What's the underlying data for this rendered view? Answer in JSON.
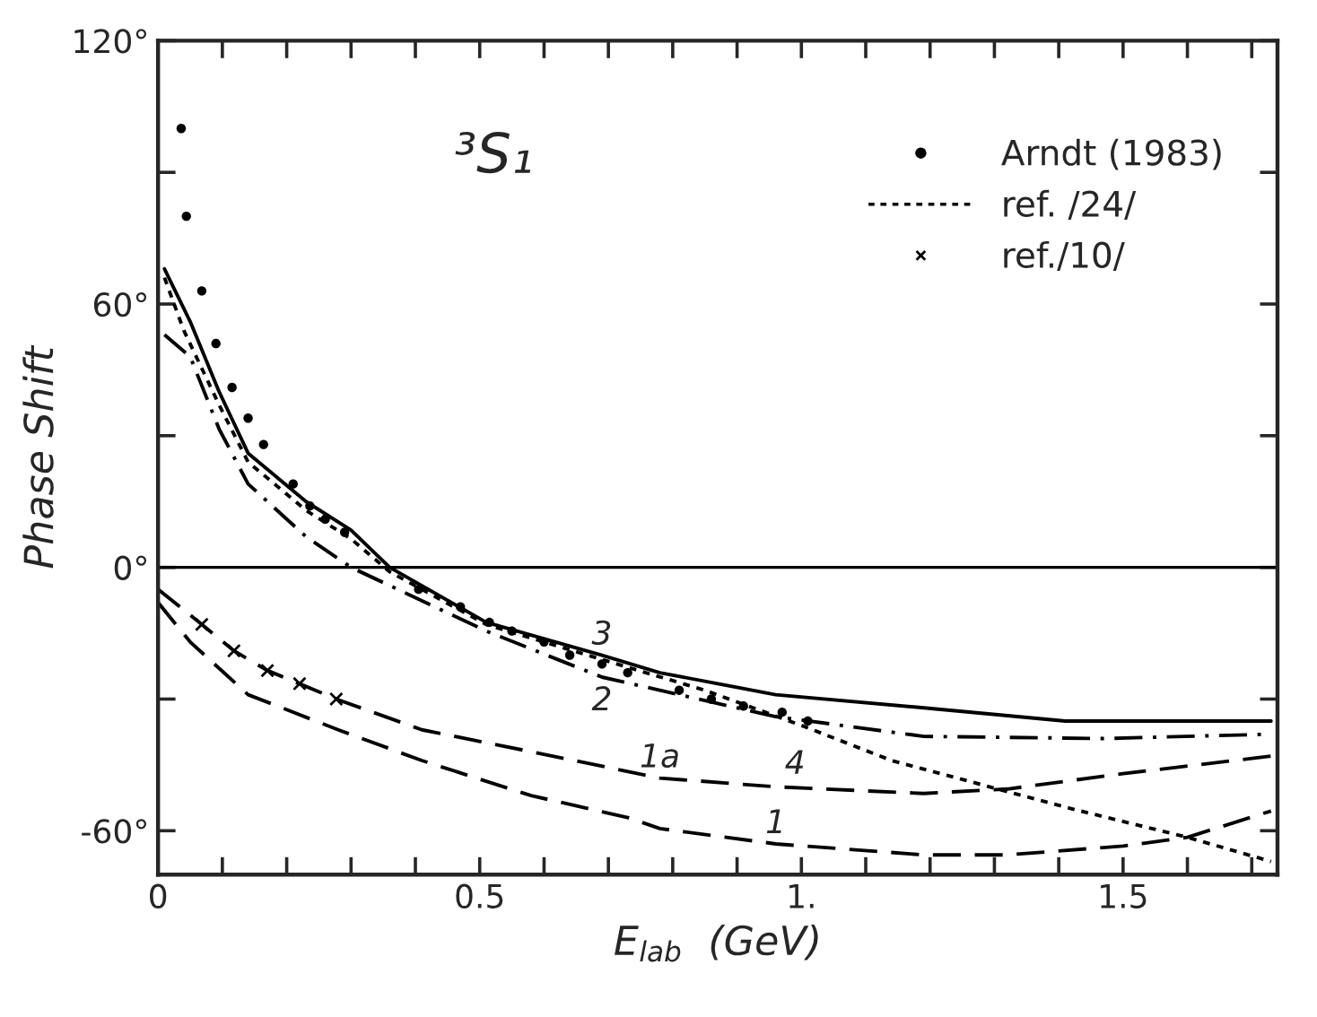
{
  "chart_data": {
    "type": "line",
    "xlabel": "E$_{lab}$  (GeV)",
    "ylabel": "Phase Shift",
    "xlim": [
      0,
      1.74
    ],
    "ylim": [
      -70,
      120
    ],
    "xticks": [
      {
        "value": 0,
        "label": "0"
      },
      {
        "value": 0.1,
        "label": null
      },
      {
        "value": 0.2,
        "label": null
      },
      {
        "value": 0.3,
        "label": null
      },
      {
        "value": 0.4,
        "label": null
      },
      {
        "value": 0.5,
        "label": "0.5"
      },
      {
        "value": 0.6,
        "label": null
      },
      {
        "value": 0.7,
        "label": null
      },
      {
        "value": 0.8,
        "label": null
      },
      {
        "value": 0.9,
        "label": null
      },
      {
        "value": 1.0,
        "label": "1."
      },
      {
        "value": 1.1,
        "label": null
      },
      {
        "value": 1.2,
        "label": null
      },
      {
        "value": 1.3,
        "label": null
      },
      {
        "value": 1.4,
        "label": null
      },
      {
        "value": 1.5,
        "label": "1.5"
      },
      {
        "value": 1.6,
        "label": null
      },
      {
        "value": 1.7,
        "label": null
      }
    ],
    "yticks": [
      {
        "value": -60,
        "label": "-60°"
      },
      {
        "value": -30,
        "label": null
      },
      {
        "value": 0,
        "label": "0°"
      },
      {
        "value": 30,
        "label": null
      },
      {
        "value": 60,
        "label": "60°"
      },
      {
        "value": 90,
        "label": null
      },
      {
        "value": 120,
        "label": "120°"
      }
    ],
    "grid": false,
    "legend": "top right",
    "ref_lines": [
      {
        "axis": "y",
        "value": 0,
        "color": "#000000",
        "line_style": "solid"
      }
    ],
    "series": [
      {
        "name": "Arndt (1983)",
        "type": "scatter",
        "marker": "circle",
        "color": "#000000",
        "x": [
          0.036,
          0.044,
          0.068,
          0.09,
          0.115,
          0.14,
          0.164,
          0.21,
          0.236,
          0.26,
          0.29,
          0.405,
          0.47,
          0.515,
          0.55,
          0.6,
          0.64,
          0.69,
          0.73,
          0.81,
          0.86,
          0.91,
          0.97,
          1.01
        ],
        "values": [
          100,
          80,
          63,
          51,
          41,
          34,
          28,
          19,
          14,
          11,
          8,
          -5,
          -9,
          -12.5,
          -14.5,
          -17,
          -20,
          -22,
          -24,
          -28,
          -30,
          -31.6,
          -33,
          -35
        ]
      },
      {
        "name": "ref. /24/",
        "line_style": "dotted",
        "color": "#000000",
        "x": [
          0.01,
          0.04,
          0.095,
          0.14,
          0.23,
          0.3,
          0.36,
          0.51,
          0.69,
          0.85,
          1.0,
          1.14,
          1.28,
          1.42,
          1.6,
          1.73
        ],
        "values": [
          66,
          54,
          37,
          24,
          13,
          6.5,
          -1,
          -13,
          -21,
          -28,
          -36,
          -44,
          -49.5,
          -55,
          -61.5,
          -67
        ]
      },
      {
        "name": "ref./10/",
        "type": "scatter",
        "marker": "cross",
        "color": "#000000",
        "x": [
          0.068,
          0.118,
          0.17,
          0.22,
          0.277
        ],
        "values": [
          -13,
          -19,
          -23.5,
          -26.5,
          -30
        ]
      },
      {
        "name": "3",
        "line_style": "solid",
        "color": "#000000",
        "x": [
          0.01,
          0.05,
          0.095,
          0.14,
          0.23,
          0.3,
          0.36,
          0.51,
          0.69,
          0.78,
          0.96,
          1.19,
          1.41,
          1.73
        ],
        "values": [
          68,
          56,
          40,
          26,
          15,
          8.5,
          0,
          -12.5,
          -20,
          -24,
          -29,
          -32,
          -35,
          -35
        ]
      },
      {
        "name": "2",
        "line_style": "dashdot",
        "color": "#000000",
        "x": [
          0.01,
          0.05,
          0.095,
          0.14,
          0.23,
          0.3,
          0.51,
          0.69,
          0.96,
          1.19,
          1.47,
          1.73
        ],
        "values": [
          53,
          48,
          31.5,
          19,
          7,
          0,
          -14.5,
          -25,
          -34,
          -38.5,
          -39,
          -38
        ]
      },
      {
        "name": "1a",
        "line_style": "dashed",
        "color": "#000000",
        "x": [
          0,
          0.068,
          0.118,
          0.17,
          0.22,
          0.277,
          0.41,
          0.58,
          0.78,
          0.96,
          1.19,
          1.32,
          1.5,
          1.73
        ],
        "values": [
          -5,
          -13,
          -19,
          -23.5,
          -26.5,
          -30,
          -37,
          -42,
          -48,
          -50,
          -51.5,
          -50.5,
          -47,
          -43
        ]
      },
      {
        "name": "1",
        "line_style": "dashed",
        "color": "#000000",
        "x": [
          0,
          0.05,
          0.14,
          0.28,
          0.41,
          0.58,
          0.73,
          0.78,
          0.96,
          1.19,
          1.32,
          1.5,
          1.6,
          1.73
        ],
        "values": [
          -8,
          -17,
          -29,
          -37,
          -44,
          -52,
          -57,
          -59.5,
          -63,
          -65.5,
          -65.5,
          -63.5,
          -61.5,
          -55.5
        ]
      }
    ],
    "annotations": [
      "³S₁",
      "4"
    ]
  }
}
